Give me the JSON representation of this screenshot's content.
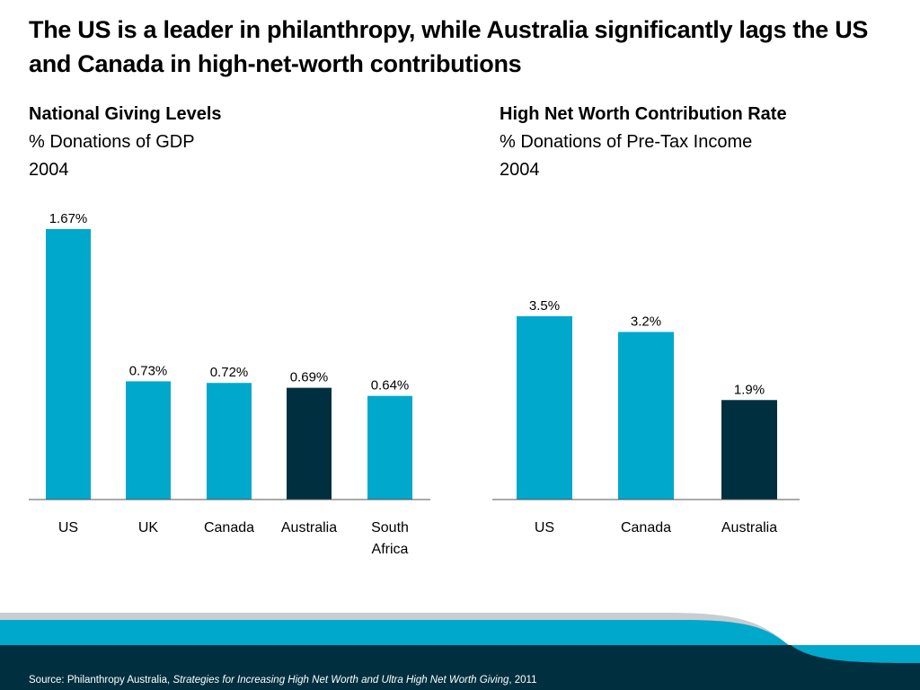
{
  "title": "The US is a leader in philanthropy, while Australia significantly lags the US and Canada in high-net-worth contributions",
  "colors": {
    "bar": "#00a8cc",
    "highlight": "#00303f",
    "axis": "#555555",
    "footer": "#00303f"
  },
  "chart_data": [
    {
      "type": "bar",
      "title": "National Giving Levels",
      "subtitle": "% Donations of GDP",
      "year": "2004",
      "categories": [
        "US",
        "UK",
        "Canada",
        "Australia",
        "South Africa"
      ],
      "values": [
        1.67,
        0.73,
        0.72,
        0.69,
        0.64
      ],
      "labels": [
        "1.67%",
        "0.73%",
        "0.72%",
        "0.69%",
        "0.64%"
      ],
      "highlight": "Australia",
      "ylim": [
        0,
        1.67
      ]
    },
    {
      "type": "bar",
      "title": "High Net Worth Contribution Rate",
      "subtitle": "% Donations of Pre-Tax Income",
      "year": "2004",
      "categories": [
        "US",
        "Canada",
        "Australia"
      ],
      "values": [
        3.5,
        3.2,
        1.9
      ],
      "labels": [
        "3.5%",
        "3.2%",
        "1.9%"
      ],
      "highlight": "Australia",
      "ylim": [
        0,
        3.5
      ]
    }
  ],
  "source": {
    "prefix": "Source: Philanthropy Australia, ",
    "work": "Strategies for Increasing High Net Worth and Ultra High Net Worth Giving",
    "suffix": ", 2011"
  }
}
